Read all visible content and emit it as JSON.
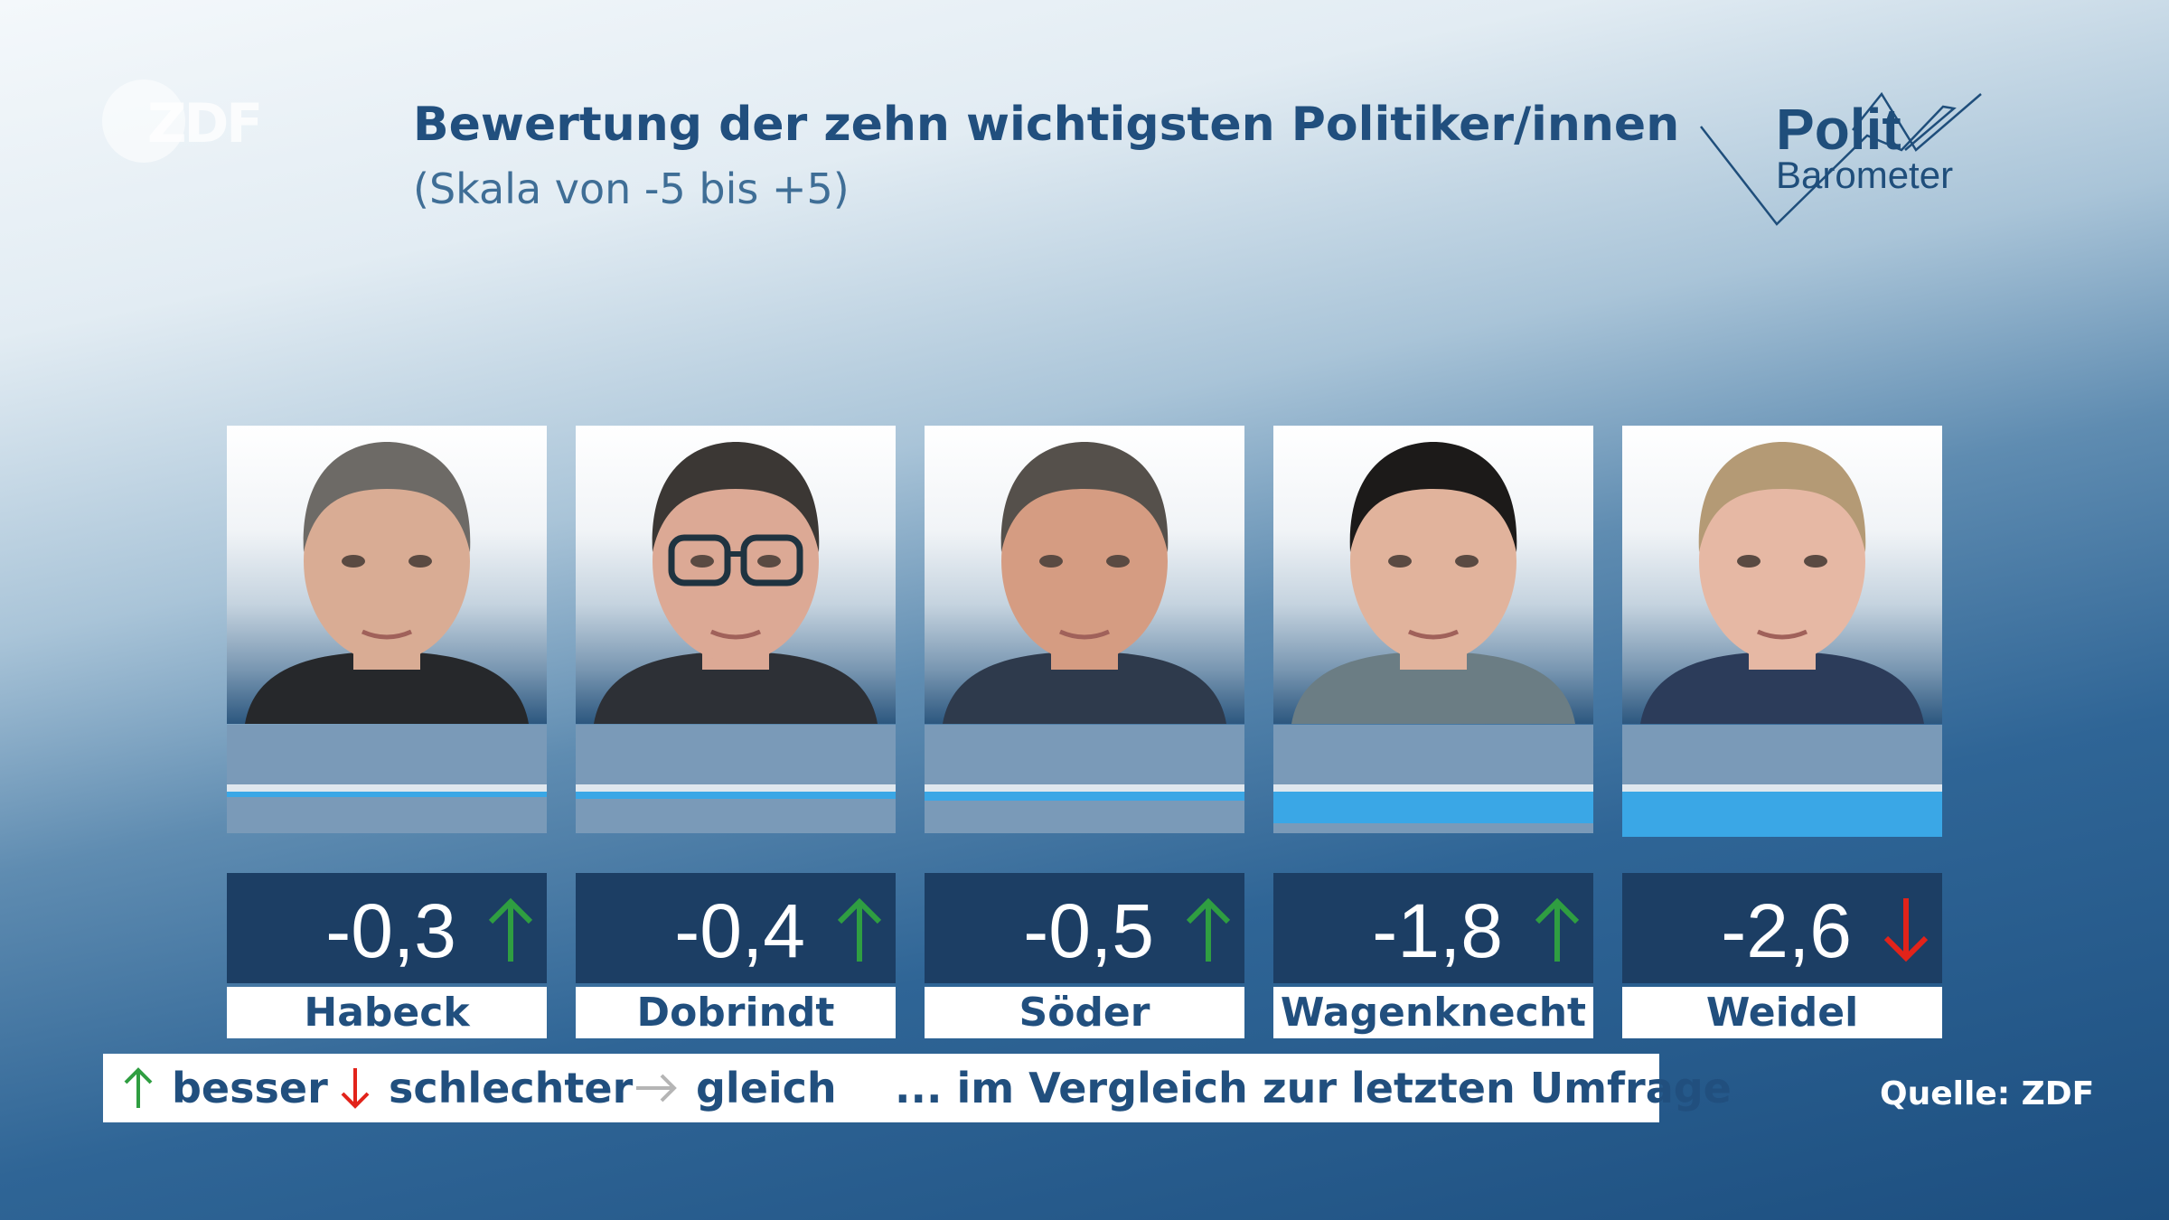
{
  "header": {
    "title": "Bewertung der zehn wichtigsten Politiker/innen",
    "subtitle": "(Skala von -5 bis +5)",
    "channel_logo": "ZDF",
    "brand_line1": "Polit",
    "brand_line2": "Barometer"
  },
  "chart_data": {
    "type": "bar",
    "title": "Bewertung der zehn wichtigsten Politiker/innen",
    "subtitle": "(Skala von -5 bis +5)",
    "ylim": [
      -5,
      5
    ],
    "categories": [
      "Habeck",
      "Dobrindt",
      "Söder",
      "Wagenknecht",
      "Weidel"
    ],
    "values": [
      -0.3,
      -0.4,
      -0.5,
      -1.8,
      -2.6
    ],
    "value_labels": [
      "-0,3",
      "-0,4",
      "-0,5",
      "-1,8",
      "-2,6"
    ],
    "trend": [
      "up",
      "up",
      "up",
      "up",
      "down"
    ],
    "legend": [
      "besser",
      "schlechter",
      "gleich"
    ]
  },
  "politicians": [
    {
      "name": "Habeck",
      "value": -0.3,
      "value_label": "-0,3",
      "trend": "up",
      "hair": "#6d6a66",
      "skin": "#d9ac94",
      "clothes": "#26282b",
      "glasses": false
    },
    {
      "name": "Dobrindt",
      "value": -0.4,
      "value_label": "-0,4",
      "trend": "up",
      "hair": "#3b3734",
      "skin": "#dca995",
      "clothes": "#2d3036",
      "glasses": true
    },
    {
      "name": "Söder",
      "value": -0.5,
      "value_label": "-0,5",
      "trend": "up",
      "hair": "#55504b",
      "skin": "#d59c82",
      "clothes": "#2e3a4c",
      "glasses": false
    },
    {
      "name": "Wagenknecht",
      "value": -1.8,
      "value_label": "-1,8",
      "trend": "up",
      "hair": "#1c1a19",
      "skin": "#e1b39c",
      "clothes": "#6b7d84",
      "glasses": false
    },
    {
      "name": "Weidel",
      "value": -2.6,
      "value_label": "-2,6",
      "trend": "down",
      "hair": "#b49a75",
      "skin": "#e6b8a4",
      "clothes": "#2c3c5a",
      "glasses": false
    }
  ],
  "legend": {
    "better": "besser",
    "worse": "schlechter",
    "same": "gleich",
    "comparison": "... im Vergleich zur letzten Umfrage"
  },
  "source": "Quelle: ZDF",
  "colors": {
    "up": "#2f9e41",
    "down": "#e2231a",
    "same": "#b5b5b5",
    "bar": "#3aa7e6",
    "navy": "#1c3e64",
    "text": "#214f7e"
  }
}
